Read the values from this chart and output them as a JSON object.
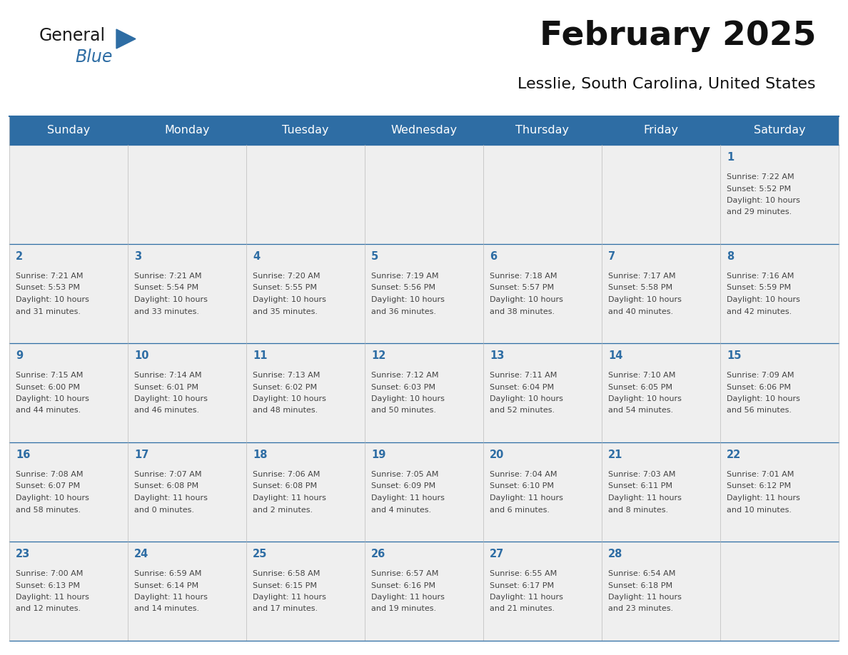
{
  "title": "February 2025",
  "subtitle": "Lesslie, South Carolina, United States",
  "header_bg_color": "#2E6DA4",
  "header_text_color": "#FFFFFF",
  "cell_bg_color": "#EFEFEF",
  "border_color": "#2E6DA4",
  "day_number_color": "#2E6DA4",
  "cell_text_color": "#444444",
  "days_of_week": [
    "Sunday",
    "Monday",
    "Tuesday",
    "Wednesday",
    "Thursday",
    "Friday",
    "Saturday"
  ],
  "calendar": [
    [
      null,
      null,
      null,
      null,
      null,
      null,
      1
    ],
    [
      2,
      3,
      4,
      5,
      6,
      7,
      8
    ],
    [
      9,
      10,
      11,
      12,
      13,
      14,
      15
    ],
    [
      16,
      17,
      18,
      19,
      20,
      21,
      22
    ],
    [
      23,
      24,
      25,
      26,
      27,
      28,
      null
    ]
  ],
  "cell_data": {
    "1": {
      "sunrise": "7:22 AM",
      "sunset": "5:52 PM",
      "daylight_h": "10 hours",
      "daylight_m": "and 29 minutes."
    },
    "2": {
      "sunrise": "7:21 AM",
      "sunset": "5:53 PM",
      "daylight_h": "10 hours",
      "daylight_m": "and 31 minutes."
    },
    "3": {
      "sunrise": "7:21 AM",
      "sunset": "5:54 PM",
      "daylight_h": "10 hours",
      "daylight_m": "and 33 minutes."
    },
    "4": {
      "sunrise": "7:20 AM",
      "sunset": "5:55 PM",
      "daylight_h": "10 hours",
      "daylight_m": "and 35 minutes."
    },
    "5": {
      "sunrise": "7:19 AM",
      "sunset": "5:56 PM",
      "daylight_h": "10 hours",
      "daylight_m": "and 36 minutes."
    },
    "6": {
      "sunrise": "7:18 AM",
      "sunset": "5:57 PM",
      "daylight_h": "10 hours",
      "daylight_m": "and 38 minutes."
    },
    "7": {
      "sunrise": "7:17 AM",
      "sunset": "5:58 PM",
      "daylight_h": "10 hours",
      "daylight_m": "and 40 minutes."
    },
    "8": {
      "sunrise": "7:16 AM",
      "sunset": "5:59 PM",
      "daylight_h": "10 hours",
      "daylight_m": "and 42 minutes."
    },
    "9": {
      "sunrise": "7:15 AM",
      "sunset": "6:00 PM",
      "daylight_h": "10 hours",
      "daylight_m": "and 44 minutes."
    },
    "10": {
      "sunrise": "7:14 AM",
      "sunset": "6:01 PM",
      "daylight_h": "10 hours",
      "daylight_m": "and 46 minutes."
    },
    "11": {
      "sunrise": "7:13 AM",
      "sunset": "6:02 PM",
      "daylight_h": "10 hours",
      "daylight_m": "and 48 minutes."
    },
    "12": {
      "sunrise": "7:12 AM",
      "sunset": "6:03 PM",
      "daylight_h": "10 hours",
      "daylight_m": "and 50 minutes."
    },
    "13": {
      "sunrise": "7:11 AM",
      "sunset": "6:04 PM",
      "daylight_h": "10 hours",
      "daylight_m": "and 52 minutes."
    },
    "14": {
      "sunrise": "7:10 AM",
      "sunset": "6:05 PM",
      "daylight_h": "10 hours",
      "daylight_m": "and 54 minutes."
    },
    "15": {
      "sunrise": "7:09 AM",
      "sunset": "6:06 PM",
      "daylight_h": "10 hours",
      "daylight_m": "and 56 minutes."
    },
    "16": {
      "sunrise": "7:08 AM",
      "sunset": "6:07 PM",
      "daylight_h": "10 hours",
      "daylight_m": "and 58 minutes."
    },
    "17": {
      "sunrise": "7:07 AM",
      "sunset": "6:08 PM",
      "daylight_h": "11 hours",
      "daylight_m": "and 0 minutes."
    },
    "18": {
      "sunrise": "7:06 AM",
      "sunset": "6:08 PM",
      "daylight_h": "11 hours",
      "daylight_m": "and 2 minutes."
    },
    "19": {
      "sunrise": "7:05 AM",
      "sunset": "6:09 PM",
      "daylight_h": "11 hours",
      "daylight_m": "and 4 minutes."
    },
    "20": {
      "sunrise": "7:04 AM",
      "sunset": "6:10 PM",
      "daylight_h": "11 hours",
      "daylight_m": "and 6 minutes."
    },
    "21": {
      "sunrise": "7:03 AM",
      "sunset": "6:11 PM",
      "daylight_h": "11 hours",
      "daylight_m": "and 8 minutes."
    },
    "22": {
      "sunrise": "7:01 AM",
      "sunset": "6:12 PM",
      "daylight_h": "11 hours",
      "daylight_m": "and 10 minutes."
    },
    "23": {
      "sunrise": "7:00 AM",
      "sunset": "6:13 PM",
      "daylight_h": "11 hours",
      "daylight_m": "and 12 minutes."
    },
    "24": {
      "sunrise": "6:59 AM",
      "sunset": "6:14 PM",
      "daylight_h": "11 hours",
      "daylight_m": "and 14 minutes."
    },
    "25": {
      "sunrise": "6:58 AM",
      "sunset": "6:15 PM",
      "daylight_h": "11 hours",
      "daylight_m": "and 17 minutes."
    },
    "26": {
      "sunrise": "6:57 AM",
      "sunset": "6:16 PM",
      "daylight_h": "11 hours",
      "daylight_m": "and 19 minutes."
    },
    "27": {
      "sunrise": "6:55 AM",
      "sunset": "6:17 PM",
      "daylight_h": "11 hours",
      "daylight_m": "and 21 minutes."
    },
    "28": {
      "sunrise": "6:54 AM",
      "sunset": "6:18 PM",
      "daylight_h": "11 hours",
      "daylight_m": "and 23 minutes."
    }
  },
  "logo_color_general": "#1a1a1a",
  "logo_color_blue": "#2E6DA4",
  "logo_triangle_color": "#2E6DA4"
}
